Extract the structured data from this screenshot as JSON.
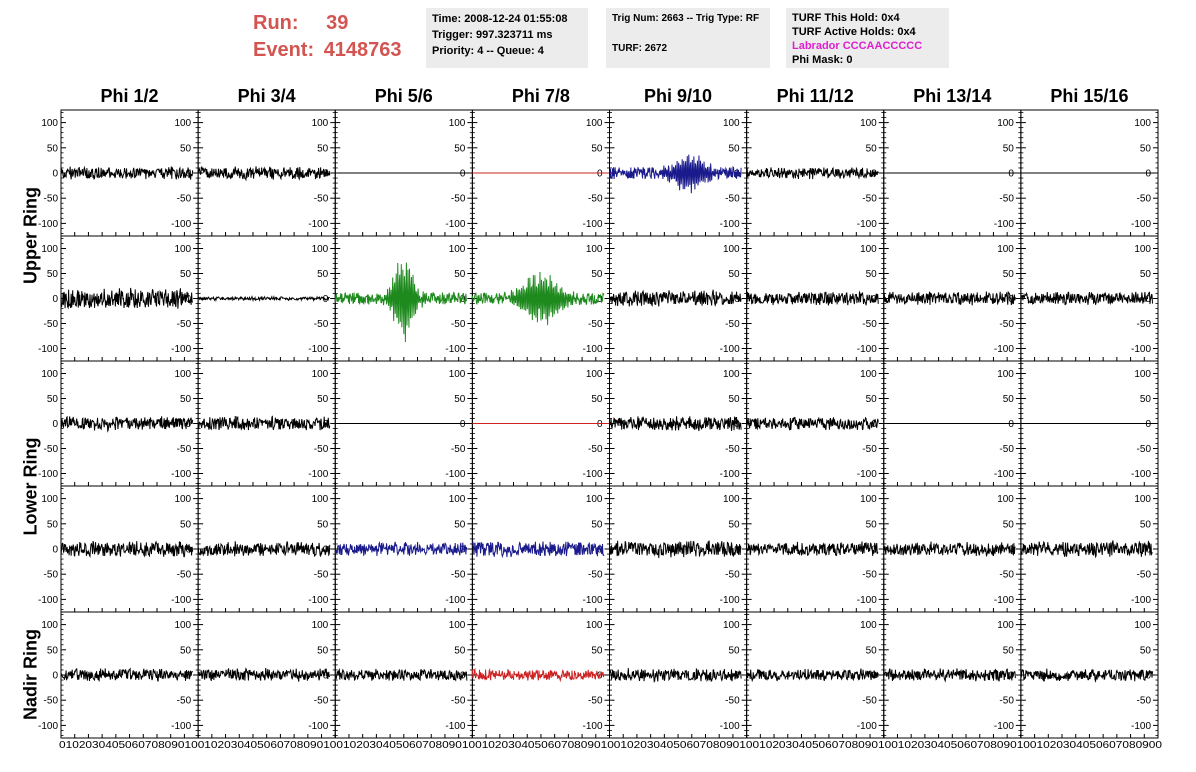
{
  "header": {
    "run_label": "Run:",
    "run_value": "39",
    "event_label": "Event:",
    "event_value": "4148763"
  },
  "info": {
    "time": "Time: 2008-12-24 01:55:08",
    "trigger": "Trigger: 997.323711 ms",
    "priority": "Priority: 4 -- Queue: 4",
    "trig_num": "Trig Num: 2663 -- Trig Type: RF",
    "turf": "TURF: 2672",
    "turf_this_hold": "TURF This Hold: 0x4",
    "turf_active_holds": "TURF Active Holds: 0x4",
    "labrador": "Labrador CCCAACCCCC",
    "phi_mask": "Phi Mask: 0"
  },
  "colors": {
    "header_red": "#d35450",
    "labrador_magenta": "#e01fd0",
    "trace_black": "#000000",
    "trace_blue": "#1a1a8c",
    "trace_green": "#1e8a1e",
    "trace_red": "#cc2222",
    "info_bg": "#ececec"
  },
  "chart_data": {
    "type": "line",
    "columns": [
      "Phi 1/2",
      "Phi 3/4",
      "Phi 5/6",
      "Phi 7/8",
      "Phi 9/10",
      "Phi 11/12",
      "Phi 13/14",
      "Phi 15/16"
    ],
    "rows": [
      "Upper Ring",
      "",
      "Lower Ring",
      "",
      "Nadir Ring"
    ],
    "row_labels": [
      {
        "text": "Upper Ring",
        "rows": [
          0,
          1
        ]
      },
      {
        "text": "Lower Ring",
        "rows": [
          2,
          3
        ]
      },
      {
        "text": "Nadir Ring",
        "rows": [
          4
        ]
      }
    ],
    "xlim": [
      0,
      100
    ],
    "ylim": [
      -125,
      125
    ],
    "y_ticks": [
      100,
      50,
      0,
      -50,
      -100
    ],
    "x_ticks": [
      0,
      10,
      20,
      30,
      40,
      50,
      60,
      70,
      80,
      90,
      100
    ],
    "x_tick_label_row": "01020304050607080901001020304050607080901001020304050607080901001020304050607080901001020304050607080901001020304050607080901001020304050607080901001020304050607080900",
    "grid": false,
    "panels": [
      [
        {
          "style": "noise",
          "color": "black",
          "amp": 14
        },
        {
          "style": "noise",
          "color": "black",
          "amp": 14
        },
        {
          "style": "flat",
          "color": "black",
          "amp": 0
        },
        {
          "style": "flat",
          "color": "red",
          "amp": 0
        },
        {
          "style": "burst",
          "color": "blue",
          "amp": 45,
          "center": 58,
          "width": 15
        },
        {
          "style": "noise",
          "color": "black",
          "amp": 13
        },
        {
          "style": "flat",
          "color": "black",
          "amp": 0
        },
        {
          "style": "flat",
          "color": "black",
          "amp": 0
        }
      ],
      [
        {
          "style": "noise",
          "color": "black",
          "amp": 22
        },
        {
          "style": "noise",
          "color": "black",
          "amp": 4
        },
        {
          "style": "burst",
          "color": "green",
          "amp": 100,
          "center": 50,
          "width": 9
        },
        {
          "style": "burst",
          "color": "green",
          "amp": 60,
          "center": 50,
          "width": 18
        },
        {
          "style": "noise",
          "color": "black",
          "amp": 18
        },
        {
          "style": "noise",
          "color": "black",
          "amp": 15
        },
        {
          "style": "noise",
          "color": "black",
          "amp": 15
        },
        {
          "style": "noise",
          "color": "black",
          "amp": 15
        }
      ],
      [
        {
          "style": "noise",
          "color": "black",
          "amp": 15
        },
        {
          "style": "noise",
          "color": "black",
          "amp": 16
        },
        {
          "style": "flat",
          "color": "black",
          "amp": 0
        },
        {
          "style": "flat",
          "color": "red",
          "amp": 0
        },
        {
          "style": "noise",
          "color": "black",
          "amp": 16
        },
        {
          "style": "noise",
          "color": "black",
          "amp": 14
        },
        {
          "style": "flat",
          "color": "black",
          "amp": 0
        },
        {
          "style": "flat",
          "color": "black",
          "amp": 0
        }
      ],
      [
        {
          "style": "noise",
          "color": "black",
          "amp": 17
        },
        {
          "style": "noise",
          "color": "black",
          "amp": 16
        },
        {
          "style": "noise",
          "color": "blue",
          "amp": 15
        },
        {
          "style": "noise",
          "color": "blue",
          "amp": 17
        },
        {
          "style": "noise",
          "color": "black",
          "amp": 18
        },
        {
          "style": "noise",
          "color": "black",
          "amp": 15
        },
        {
          "style": "noise",
          "color": "black",
          "amp": 16
        },
        {
          "style": "noise",
          "color": "black",
          "amp": 17
        }
      ],
      [
        {
          "style": "noise",
          "color": "black",
          "amp": 14
        },
        {
          "style": "noise",
          "color": "black",
          "amp": 14
        },
        {
          "style": "noise",
          "color": "black",
          "amp": 13
        },
        {
          "style": "noise",
          "color": "red",
          "amp": 13
        },
        {
          "style": "noise",
          "color": "black",
          "amp": 14
        },
        {
          "style": "noise",
          "color": "black",
          "amp": 13
        },
        {
          "style": "noise",
          "color": "black",
          "amp": 14
        },
        {
          "style": "noise",
          "color": "black",
          "amp": 13
        }
      ]
    ]
  }
}
